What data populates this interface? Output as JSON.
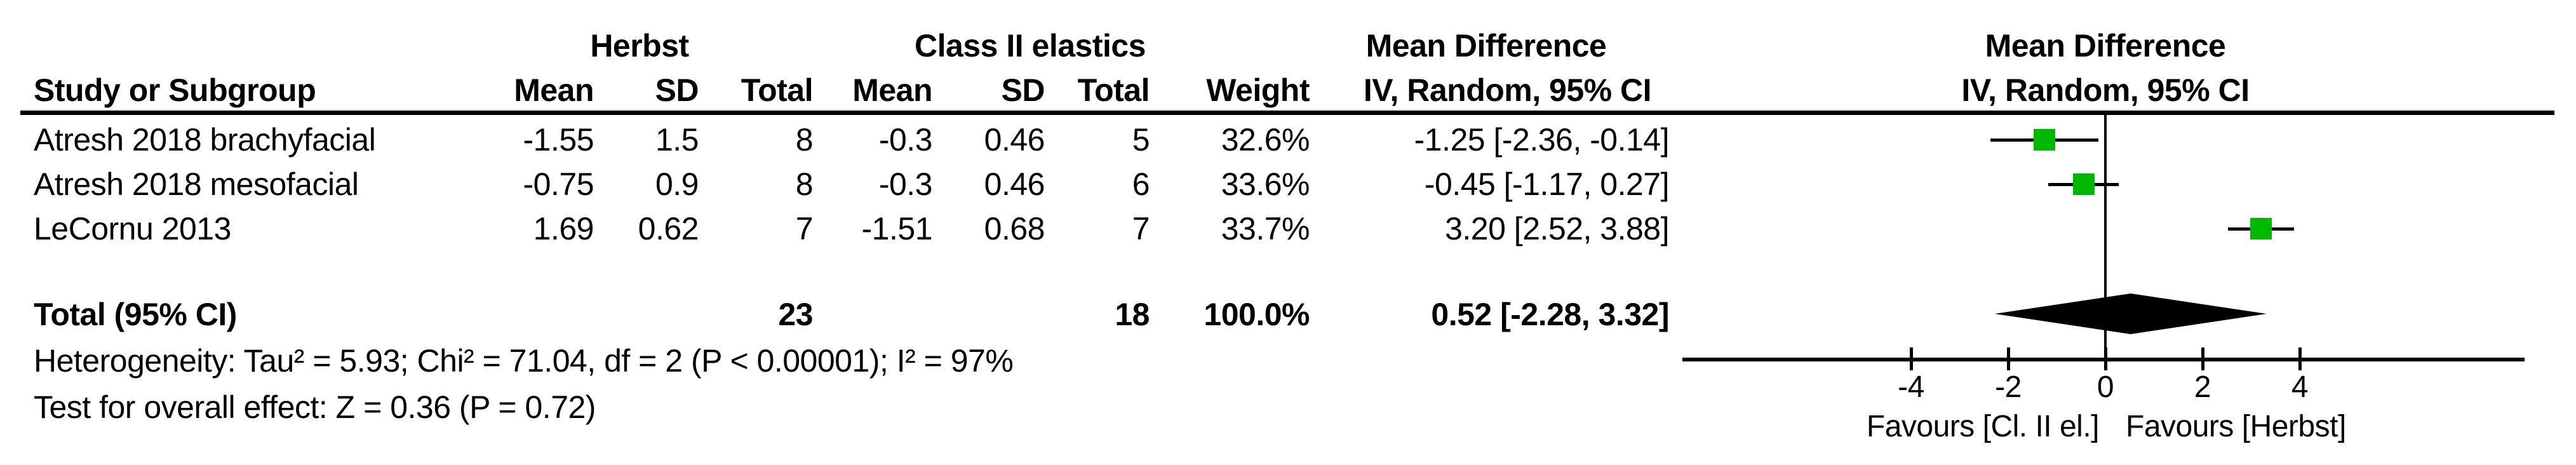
{
  "table": {
    "group1_header": "Herbst",
    "group2_header": "Class II elastics",
    "stat_header_line1": "Mean Difference",
    "stat_header_line2": "IV, Random, 95% CI",
    "plot_header_line1": "Mean Difference",
    "plot_header_line2": "IV, Random, 95% CI",
    "col_headers": {
      "study": "Study or Subgroup",
      "mean": "Mean",
      "sd": "SD",
      "total": "Total",
      "weight": "Weight"
    },
    "rows": [
      {
        "study": "Atresh 2018 brachyfacial",
        "mean1": "-1.55",
        "sd1": "1.5",
        "total1": "8",
        "mean2": "-0.3",
        "sd2": "0.46",
        "total2": "5",
        "weight": "32.6%",
        "ci_text": "-1.25 [-2.36, -0.14]"
      },
      {
        "study": "Atresh 2018 mesofacial",
        "mean1": "-0.75",
        "sd1": "0.9",
        "total1": "8",
        "mean2": "-0.3",
        "sd2": "0.46",
        "total2": "6",
        "weight": "33.6%",
        "ci_text": "-0.45 [-1.17, 0.27]"
      },
      {
        "study": "LeCornu 2013",
        "mean1": "1.69",
        "sd1": "0.62",
        "total1": "7",
        "mean2": "-1.51",
        "sd2": "0.68",
        "total2": "7",
        "weight": "33.7%",
        "ci_text": "3.20 [2.52, 3.88]"
      }
    ],
    "total_row": {
      "label": "Total (95% CI)",
      "total1": "23",
      "total2": "18",
      "weight": "100.0%",
      "ci_text": "0.52 [-2.28, 3.32]"
    },
    "heterogeneity": "Heterogeneity: Tau² = 5.93; Chi² = 71.04, df = 2 (P < 0.00001); I² = 97%",
    "overall_effect": "Test for overall effect: Z = 0.36 (P = 0.72)"
  },
  "chart_data": {
    "type": "forest",
    "title": "Mean Difference",
    "subtitle": "IV, Random, 95% CI",
    "effect_measure": "Mean Difference (IV, Random, 95% CI)",
    "axis_ticks": [
      -4,
      -2,
      0,
      2,
      4
    ],
    "xlim": [
      -8.7,
      8.6
    ],
    "studies": [
      {
        "name": "Atresh 2018 brachyfacial",
        "mean": -1.25,
        "ci_low": -2.36,
        "ci_high": -0.14,
        "weight_pct": 32.6
      },
      {
        "name": "Atresh 2018 mesofacial",
        "mean": -0.45,
        "ci_low": -1.17,
        "ci_high": 0.27,
        "weight_pct": 33.6
      },
      {
        "name": "LeCornu 2013",
        "mean": 3.2,
        "ci_low": 2.52,
        "ci_high": 3.88,
        "weight_pct": 33.7
      }
    ],
    "total": {
      "label": "Total (95% CI)",
      "mean": 0.52,
      "ci_low": -2.28,
      "ci_high": 3.32,
      "weight_pct": 100.0
    },
    "favours_left": "Favours [Cl. II el.]",
    "favours_right": "Favours [Herbst]",
    "marker_color": "#00b800",
    "diamond_color": "#000000",
    "line_color": "#000000"
  }
}
